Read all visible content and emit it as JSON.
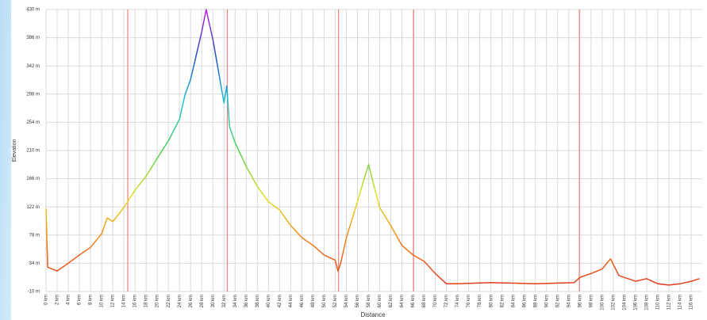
{
  "chart_data": {
    "type": "line",
    "xlabel": "Distance",
    "ylabel": "Elevation",
    "x": [
      0,
      0.3,
      2,
      4,
      6,
      8,
      10,
      11,
      12,
      14,
      16,
      18,
      20,
      22,
      24,
      25,
      26,
      27,
      28,
      28.8,
      30,
      31,
      32,
      32.5,
      32.8,
      33,
      34,
      36,
      38,
      40,
      42,
      44,
      46,
      48,
      50,
      52,
      52.5,
      53,
      54,
      56,
      57,
      58,
      59,
      60,
      62,
      64,
      66,
      68,
      70,
      72,
      74,
      80,
      88,
      95,
      96,
      98,
      100,
      101.5,
      103,
      106,
      108,
      110,
      112,
      114,
      116,
      117.5
    ],
    "values": [
      120,
      28,
      22,
      34,
      47,
      59,
      80,
      105,
      99,
      121,
      148,
      170,
      198,
      225,
      259,
      297,
      321,
      358,
      395,
      430,
      383,
      334,
      284,
      311,
      272,
      247,
      222,
      185,
      154,
      130,
      117,
      93,
      74,
      62,
      47,
      39,
      22,
      34,
      74,
      130,
      160,
      188,
      154,
      121,
      93,
      62,
      47,
      37,
      18,
      2,
      2,
      4,
      2,
      4,
      12,
      18,
      25,
      41,
      15,
      6,
      10,
      2,
      0,
      2,
      6,
      10
    ],
    "color_stops": [
      "#e0301e",
      "#f07a1a",
      "#e8e020",
      "#50d050",
      "#20c8d8",
      "#2050c0",
      "#c020e0"
    ],
    "markers": [
      14.7,
      32.6,
      52.6,
      66.1,
      95.9
    ],
    "marker_color": "#f08080",
    "grid": true,
    "xlim": [
      0,
      118
    ],
    "ylim": [
      -10,
      430
    ],
    "yticks": [
      {
        "value": -10,
        "label": "-10 m"
      },
      {
        "value": 34,
        "label": "34 m"
      },
      {
        "value": 78,
        "label": "78 m"
      },
      {
        "value": 122,
        "label": "122 m"
      },
      {
        "value": 166,
        "label": "166 m"
      },
      {
        "value": 210,
        "label": "210 m"
      },
      {
        "value": 254,
        "label": "254 m"
      },
      {
        "value": 298,
        "label": "298 m"
      },
      {
        "value": 342,
        "label": "342 m"
      },
      {
        "value": 386,
        "label": "386 m"
      },
      {
        "value": 430,
        "label": "430 m"
      }
    ],
    "xticks": [
      {
        "value": 0,
        "label": "0 km"
      },
      {
        "value": 2,
        "label": "2 km"
      },
      {
        "value": 4,
        "label": "4 km"
      },
      {
        "value": 6,
        "label": "6 km"
      },
      {
        "value": 8,
        "label": "8 km"
      },
      {
        "value": 10,
        "label": "10 km"
      },
      {
        "value": 12,
        "label": "12 km"
      },
      {
        "value": 14,
        "label": "14 km"
      },
      {
        "value": 16,
        "label": "16 km"
      },
      {
        "value": 18,
        "label": "18 km"
      },
      {
        "value": 20,
        "label": "20 km"
      },
      {
        "value": 22,
        "label": "22 km"
      },
      {
        "value": 24,
        "label": "24 km"
      },
      {
        "value": 26,
        "label": "26 km"
      },
      {
        "value": 28,
        "label": "28 km"
      },
      {
        "value": 30,
        "label": "30 km"
      },
      {
        "value": 32,
        "label": "32 km"
      },
      {
        "value": 34,
        "label": "34 km"
      },
      {
        "value": 36,
        "label": "36 km"
      },
      {
        "value": 38,
        "label": "38 km"
      },
      {
        "value": 40,
        "label": "40 km"
      },
      {
        "value": 42,
        "label": "42 km"
      },
      {
        "value": 44,
        "label": "44 km"
      },
      {
        "value": 46,
        "label": "46 km"
      },
      {
        "value": 48,
        "label": "48 km"
      },
      {
        "value": 50,
        "label": "50 km"
      },
      {
        "value": 52,
        "label": "52 km"
      },
      {
        "value": 54,
        "label": "54 km"
      },
      {
        "value": 56,
        "label": "56 km"
      },
      {
        "value": 58,
        "label": "58 km"
      },
      {
        "value": 60,
        "label": "60 km"
      },
      {
        "value": 62,
        "label": "62 km"
      },
      {
        "value": 64,
        "label": "64 km"
      },
      {
        "value": 66,
        "label": "66 km"
      },
      {
        "value": 68,
        "label": "68 km"
      },
      {
        "value": 70,
        "label": "70 km"
      },
      {
        "value": 72,
        "label": "72 km"
      },
      {
        "value": 74,
        "label": "74 km"
      },
      {
        "value": 76,
        "label": "76 km"
      },
      {
        "value": 78,
        "label": "78 km"
      },
      {
        "value": 80,
        "label": "80 km"
      },
      {
        "value": 82,
        "label": "82 km"
      },
      {
        "value": 84,
        "label": "84 km"
      },
      {
        "value": 86,
        "label": "86 km"
      },
      {
        "value": 88,
        "label": "88 km"
      },
      {
        "value": 90,
        "label": "90 km"
      },
      {
        "value": 92,
        "label": "92 km"
      },
      {
        "value": 94,
        "label": "94 km"
      },
      {
        "value": 96,
        "label": "96 km"
      },
      {
        "value": 98,
        "label": "98 km"
      },
      {
        "value": 100,
        "label": "100 km"
      },
      {
        "value": 102,
        "label": "102 km"
      },
      {
        "value": 104,
        "label": "104 km"
      },
      {
        "value": 106,
        "label": "106 km"
      },
      {
        "value": 108,
        "label": "108 km"
      },
      {
        "value": 110,
        "label": "110 km"
      },
      {
        "value": 112,
        "label": "112 km"
      },
      {
        "value": 114,
        "label": "114 km"
      },
      {
        "value": 116,
        "label": "116 km"
      }
    ]
  }
}
